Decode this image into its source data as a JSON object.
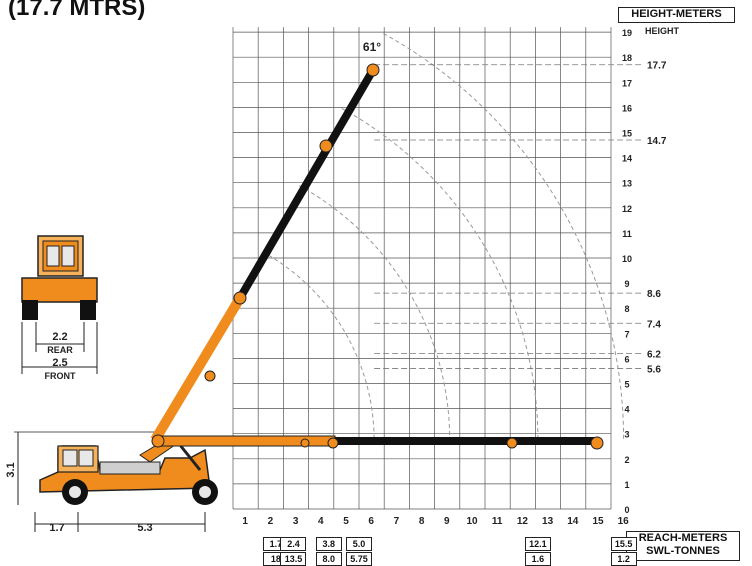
{
  "title": "(17.7 MTRS)",
  "height_box_label": "HEIGHT-METERS",
  "height_axis_label": "HEIGHT",
  "reach_box_label": "REACH-METERS",
  "swl_box_label": "SWL-TONNES",
  "boom_angle_label": "61°",
  "chart_data": {
    "type": "diagram",
    "x_ticks": [
      "1",
      "2",
      "3",
      "4",
      "5",
      "6",
      "7",
      "8",
      "9",
      "10",
      "11",
      "12",
      "13",
      "14",
      "15",
      "16"
    ],
    "y_ticks": [
      "0",
      "1",
      "2",
      "3",
      "4",
      "5",
      "6",
      "7",
      "8",
      "9",
      "10",
      "11",
      "12",
      "13",
      "14",
      "15",
      "16",
      "17",
      "18",
      "19"
    ],
    "height_markers": [
      {
        "label": "17.7",
        "value": 17.7
      },
      {
        "label": "14.7",
        "value": 14.7
      },
      {
        "label": "8.6",
        "value": 8.6
      },
      {
        "label": "7.4",
        "value": 7.4
      },
      {
        "label": "6.2",
        "value": 6.2
      },
      {
        "label": "5.6",
        "value": 5.6
      }
    ],
    "load_table": [
      {
        "reach": "1.7",
        "swl": "18",
        "x": 1.7
      },
      {
        "reach": "2.4",
        "swl": "13.5",
        "x": 2.4
      },
      {
        "reach": "3.8",
        "swl": "8.0",
        "x": 3.8
      },
      {
        "reach": "5.0",
        "swl": "5.75",
        "x": 5.0
      },
      {
        "reach": "12.1",
        "swl": "1.6",
        "x": 12.1
      },
      {
        "reach": "15.5",
        "swl": "1.2",
        "x": 15.5
      }
    ],
    "dimensions": {
      "rear_width": "2.2",
      "rear_label": "REAR",
      "front_width": "2.5",
      "front_label": "FRONT",
      "height": "3.1",
      "rear_overhang": "1.7",
      "wheelbase": "5.3"
    }
  }
}
